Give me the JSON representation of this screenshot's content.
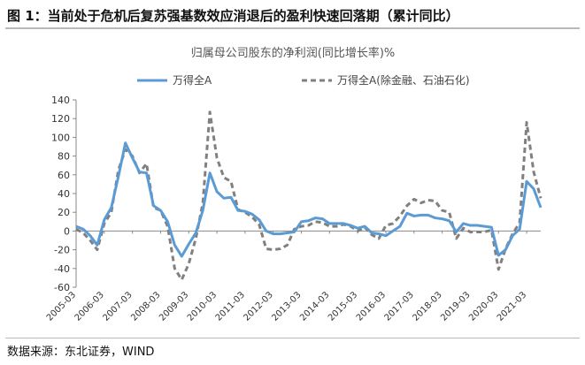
{
  "figure": {
    "title": "图 1：当前处于危机后复苏强基数效应消退后的盈利快速回落期（累计同比）",
    "source": "数据来源：东北证券，WIND"
  },
  "chart_data": {
    "type": "line",
    "title": "归属母公司股东的净利润(同比增长率)%",
    "xlabel": "",
    "ylabel": "",
    "ylim": [
      -60,
      140
    ],
    "yticks": [
      -60,
      -40,
      -20,
      0,
      20,
      40,
      60,
      80,
      100,
      120,
      140
    ],
    "xticks": [
      "2005-03",
      "2006-03",
      "2007-03",
      "2008-03",
      "2009-03",
      "2010-03",
      "2011-03",
      "2012-03",
      "2013-03",
      "2014-03",
      "2015-03",
      "2016-03",
      "2017-03",
      "2018-03",
      "2019-03",
      "2020-03",
      "2021-03"
    ],
    "legend_position": "top",
    "grid": false,
    "x": [
      "2005-03",
      "2005-06",
      "2005-09",
      "2005-12",
      "2006-03",
      "2006-06",
      "2006-09",
      "2006-12",
      "2007-03",
      "2007-06",
      "2007-09",
      "2007-12",
      "2008-03",
      "2008-06",
      "2008-09",
      "2008-12",
      "2009-03",
      "2009-06",
      "2009-09",
      "2009-12",
      "2010-03",
      "2010-06",
      "2010-09",
      "2010-12",
      "2011-03",
      "2011-06",
      "2011-09",
      "2011-12",
      "2012-03",
      "2012-06",
      "2012-09",
      "2012-12",
      "2013-03",
      "2013-06",
      "2013-09",
      "2013-12",
      "2014-03",
      "2014-06",
      "2014-09",
      "2014-12",
      "2015-03",
      "2015-06",
      "2015-09",
      "2015-12",
      "2016-03",
      "2016-06",
      "2016-09",
      "2016-12",
      "2017-03",
      "2017-06",
      "2017-09",
      "2017-12",
      "2018-03",
      "2018-06",
      "2018-09",
      "2018-12",
      "2019-03",
      "2019-06",
      "2019-09",
      "2019-12",
      "2020-03",
      "2020-06",
      "2020-09",
      "2020-12",
      "2021-03",
      "2021-06",
      "2021-09"
    ],
    "series": [
      {
        "name": "万得全A",
        "color": "#5b9bd5",
        "style": "solid",
        "values": [
          5,
          2,
          -5,
          -15,
          12,
          25,
          58,
          94,
          78,
          63,
          62,
          27,
          22,
          10,
          -15,
          -27,
          -14,
          -2,
          22,
          62,
          42,
          35,
          36,
          22,
          21,
          18,
          12,
          0,
          -3,
          -3,
          -2,
          -1,
          10,
          11,
          14,
          13,
          8,
          8,
          8,
          6,
          3,
          5,
          -2,
          -3,
          -5,
          0,
          5,
          19,
          16,
          17,
          17,
          14,
          13,
          11,
          -1,
          8,
          6,
          6,
          5,
          4,
          -26,
          -20,
          -5,
          2,
          53,
          45,
          25
        ]
      },
      {
        "name": "万得全A(除金融、石油石化)",
        "color": "#808080",
        "style": "dashed",
        "values": [
          2,
          -2,
          -10,
          -20,
          8,
          20,
          65,
          87,
          80,
          62,
          72,
          25,
          22,
          5,
          -40,
          -52,
          -35,
          -8,
          30,
          127,
          78,
          57,
          53,
          23,
          20,
          15,
          7,
          -19,
          -20,
          -19,
          -15,
          2,
          5,
          6,
          10,
          9,
          5,
          5,
          7,
          5,
          0,
          4,
          -4,
          -8,
          6,
          8,
          16,
          27,
          34,
          30,
          33,
          32,
          22,
          20,
          -8,
          3,
          -1,
          -1,
          -1,
          1,
          -41,
          -19,
          -3,
          9,
          116,
          63,
          35
        ]
      }
    ]
  }
}
